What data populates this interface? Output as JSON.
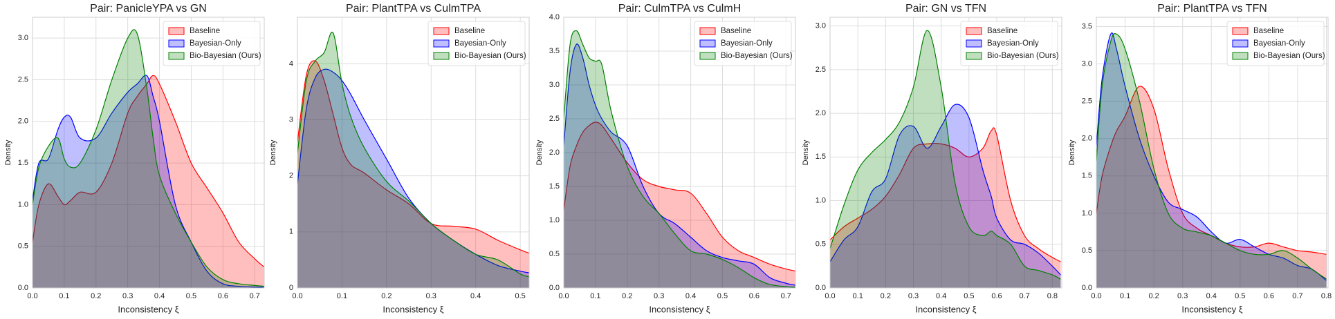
{
  "chart_data": [
    {
      "type": "area",
      "title": "Pair: PanicleYPA vs GN",
      "x_label": "Inconsistency ξ",
      "y_label": "Density",
      "x": [
        0,
        0.02,
        0.05,
        0.08,
        0.1,
        0.12,
        0.15,
        0.2,
        0.25,
        0.3,
        0.33,
        0.36,
        0.38,
        0.4,
        0.45,
        0.5,
        0.55,
        0.6,
        0.65,
        0.7,
        0.73
      ],
      "series": [
        {
          "name": "Baseline",
          "color": "red",
          "values": [
            0.55,
            1.0,
            1.25,
            1.1,
            1.0,
            1.05,
            1.15,
            1.15,
            1.5,
            2.1,
            2.3,
            2.45,
            2.55,
            2.45,
            2.0,
            1.5,
            1.2,
            0.9,
            0.55,
            0.35,
            0.25
          ]
        },
        {
          "name": "Bayesian-Only",
          "color": "blue",
          "values": [
            1.05,
            1.5,
            1.55,
            1.9,
            2.05,
            2.05,
            1.8,
            1.8,
            2.1,
            2.35,
            2.45,
            2.55,
            2.3,
            2.0,
            1.0,
            0.55,
            0.2,
            0.05,
            0.02,
            0.01,
            0.01
          ]
        },
        {
          "name": "Bio-Bayesian (Ours)",
          "color": "green",
          "values": [
            1.0,
            1.45,
            1.7,
            1.8,
            1.55,
            1.45,
            1.5,
            1.9,
            2.5,
            3.0,
            3.05,
            2.4,
            1.8,
            1.35,
            0.9,
            0.55,
            0.25,
            0.1,
            0.05,
            0.03,
            0.02
          ]
        }
      ],
      "xlim": [
        0,
        0.73
      ],
      "xticks": [
        {
          "value": 0,
          "label": "0.0"
        },
        0.1,
        0.2,
        0.3,
        0.4,
        0.5,
        0.6,
        0.7
      ],
      "ylim": [
        0,
        3.25
      ],
      "yticks": [
        {
          "value": 0,
          "label": "0.0"
        },
        0.5,
        {
          "value": 1,
          "label": "1.0"
        },
        1.5,
        {
          "value": 2,
          "label": "2.0"
        },
        2.5,
        {
          "value": 3,
          "label": "3.0"
        }
      ],
      "grid": true,
      "legend": "upper right"
    },
    {
      "type": "area",
      "title": "Pair: PlantTPA vs CulmTPA",
      "x_label": "Inconsistency ξ",
      "y_label": "Density",
      "x": [
        0,
        0.02,
        0.04,
        0.06,
        0.08,
        0.1,
        0.12,
        0.15,
        0.2,
        0.25,
        0.3,
        0.35,
        0.4,
        0.45,
        0.5,
        0.52
      ],
      "series": [
        {
          "name": "Baseline",
          "color": "red",
          "values": [
            2.6,
            3.8,
            4.05,
            3.7,
            3.1,
            2.5,
            2.2,
            2.05,
            1.75,
            1.5,
            1.15,
            1.1,
            1.05,
            0.85,
            0.68,
            0.62
          ]
        },
        {
          "name": "Bayesian-Only",
          "color": "blue",
          "values": [
            1.85,
            3.2,
            3.75,
            3.9,
            3.85,
            3.7,
            3.45,
            3.0,
            2.3,
            1.6,
            1.15,
            0.85,
            0.6,
            0.4,
            0.3,
            0.27
          ]
        },
        {
          "name": "Bio-Bayesian (Ours)",
          "color": "green",
          "values": [
            2.4,
            3.7,
            4.05,
            4.2,
            4.55,
            3.65,
            3.05,
            2.5,
            1.9,
            1.55,
            1.15,
            0.85,
            0.6,
            0.5,
            0.25,
            0.2
          ]
        }
      ],
      "xlim": [
        0,
        0.52
      ],
      "xticks": [
        {
          "value": 0,
          "label": "0.0"
        },
        0.1,
        0.2,
        0.3,
        0.4,
        0.5
      ],
      "ylim": [
        0,
        4.83
      ],
      "yticks": [
        0,
        1,
        2,
        3,
        4
      ],
      "grid": true,
      "legend": "upper right"
    },
    {
      "type": "area",
      "title": "Pair: CulmTPA vs CulmH",
      "x_label": "Inconsistency ξ",
      "y_label": "Density",
      "x": [
        0,
        0.02,
        0.04,
        0.06,
        0.08,
        0.1,
        0.12,
        0.15,
        0.2,
        0.25,
        0.3,
        0.35,
        0.4,
        0.45,
        0.5,
        0.55,
        0.6,
        0.65,
        0.7,
        0.73
      ],
      "series": [
        {
          "name": "Baseline",
          "color": "red",
          "values": [
            1.15,
            1.8,
            2.1,
            2.3,
            2.4,
            2.45,
            2.4,
            2.2,
            1.85,
            1.6,
            1.5,
            1.45,
            1.4,
            1.1,
            0.75,
            0.55,
            0.45,
            0.35,
            0.28,
            0.25
          ]
        },
        {
          "name": "Bayesian-Only",
          "color": "blue",
          "values": [
            2.1,
            3.2,
            3.6,
            3.4,
            3.0,
            2.7,
            2.5,
            2.3,
            2.1,
            1.5,
            1.1,
            0.95,
            0.75,
            0.55,
            0.45,
            0.4,
            0.35,
            0.15,
            0.07,
            0.04
          ]
        },
        {
          "name": "Bio-Bayesian (Ours)",
          "color": "green",
          "values": [
            2.5,
            3.6,
            3.8,
            3.6,
            3.4,
            3.35,
            3.3,
            2.6,
            1.8,
            1.35,
            1.1,
            0.8,
            0.55,
            0.5,
            0.42,
            0.3,
            0.15,
            0.05,
            0.02,
            0.01
          ]
        }
      ],
      "xlim": [
        0,
        0.73
      ],
      "xticks": [
        {
          "value": 0,
          "label": "0.0"
        },
        0.1,
        0.2,
        0.3,
        0.4,
        0.5,
        0.6,
        0.7
      ],
      "ylim": [
        0,
        4.0
      ],
      "yticks": [
        {
          "value": 0,
          "label": "0.0"
        },
        0.5,
        {
          "value": 1,
          "label": "1.0"
        },
        1.5,
        {
          "value": 2,
          "label": "2.0"
        },
        2.5,
        {
          "value": 3,
          "label": "3.0"
        },
        3.5,
        {
          "value": 4,
          "label": "4.0"
        }
      ],
      "grid": true,
      "legend": "upper right"
    },
    {
      "type": "area",
      "title": "Pair: GN vs TFN",
      "x_label": "Inconsistency ξ",
      "y_label": "Density",
      "x": [
        0,
        0.05,
        0.1,
        0.15,
        0.2,
        0.25,
        0.3,
        0.35,
        0.4,
        0.45,
        0.5,
        0.55,
        0.58,
        0.6,
        0.65,
        0.7,
        0.75,
        0.8,
        0.83
      ],
      "series": [
        {
          "name": "Baseline",
          "color": "red",
          "values": [
            0.55,
            0.7,
            0.8,
            0.9,
            1.05,
            1.3,
            1.6,
            1.65,
            1.65,
            1.6,
            1.5,
            1.6,
            1.8,
            1.75,
            1.0,
            0.6,
            0.45,
            0.35,
            0.3
          ]
        },
        {
          "name": "Bayesian-Only",
          "color": "blue",
          "values": [
            0.3,
            0.55,
            0.7,
            1.1,
            1.25,
            1.75,
            1.85,
            1.6,
            1.85,
            2.1,
            1.95,
            1.35,
            1.05,
            0.8,
            0.55,
            0.5,
            0.4,
            0.25,
            0.15
          ]
        },
        {
          "name": "Bio-Bayesian (Ours)",
          "color": "green",
          "values": [
            0.45,
            0.95,
            1.35,
            1.55,
            1.7,
            1.9,
            2.3,
            2.95,
            2.3,
            1.2,
            0.7,
            0.6,
            0.65,
            0.6,
            0.5,
            0.25,
            0.2,
            0.15,
            0.1
          ]
        }
      ],
      "xlim": [
        0,
        0.834
      ],
      "xticks": [
        {
          "value": 0,
          "label": "0.0"
        },
        0.1,
        0.2,
        0.3,
        0.4,
        0.5,
        0.6,
        0.7,
        0.8
      ],
      "ylim": [
        0,
        3.1
      ],
      "yticks": [
        {
          "value": 0,
          "label": "0.0"
        },
        0.5,
        {
          "value": 1,
          "label": "1.0"
        },
        1.5,
        {
          "value": 2,
          "label": "2.0"
        },
        2.5,
        {
          "value": 3,
          "label": "3.0"
        }
      ],
      "grid": true,
      "legend": "upper right"
    },
    {
      "type": "area",
      "title": "Pair: PlantTPA vs TFN",
      "x_label": "Inconsistency ξ",
      "y_label": "Density",
      "x": [
        0,
        0.02,
        0.05,
        0.07,
        0.1,
        0.15,
        0.2,
        0.25,
        0.3,
        0.35,
        0.4,
        0.45,
        0.5,
        0.55,
        0.6,
        0.65,
        0.7,
        0.75,
        0.8
      ],
      "series": [
        {
          "name": "Baseline",
          "color": "red",
          "values": [
            1.0,
            1.5,
            1.9,
            2.1,
            2.3,
            2.7,
            2.4,
            1.6,
            1.0,
            0.8,
            0.7,
            0.6,
            0.55,
            0.55,
            0.6,
            0.55,
            0.5,
            0.48,
            0.45
          ]
        },
        {
          "name": "Bayesian-Only",
          "color": "blue",
          "values": [
            1.9,
            2.8,
            3.4,
            3.2,
            2.7,
            2.0,
            1.5,
            1.15,
            1.05,
            0.95,
            0.75,
            0.6,
            0.65,
            0.55,
            0.45,
            0.4,
            0.3,
            0.25,
            0.1
          ]
        },
        {
          "name": "Bio-Bayesian (Ours)",
          "color": "green",
          "values": [
            1.7,
            2.7,
            3.3,
            3.4,
            3.2,
            2.5,
            1.6,
            1.0,
            0.8,
            0.75,
            0.7,
            0.6,
            0.5,
            0.45,
            0.45,
            0.5,
            0.4,
            0.25,
            0.12
          ]
        }
      ],
      "xlim": [
        0,
        0.806
      ],
      "xticks": [
        {
          "value": 0,
          "label": "0.0"
        },
        0.1,
        0.2,
        0.3,
        0.4,
        0.5,
        0.6,
        0.7,
        0.8
      ],
      "ylim": [
        0,
        3.625
      ],
      "yticks": [
        {
          "value": 0,
          "label": "0.0"
        },
        0.5,
        {
          "value": 1,
          "label": "1.0"
        },
        1.5,
        {
          "value": 2,
          "label": "2.0"
        },
        2.5,
        {
          "value": 3,
          "label": "3.0"
        },
        3.5
      ],
      "grid": true,
      "legend": "upper right"
    }
  ]
}
